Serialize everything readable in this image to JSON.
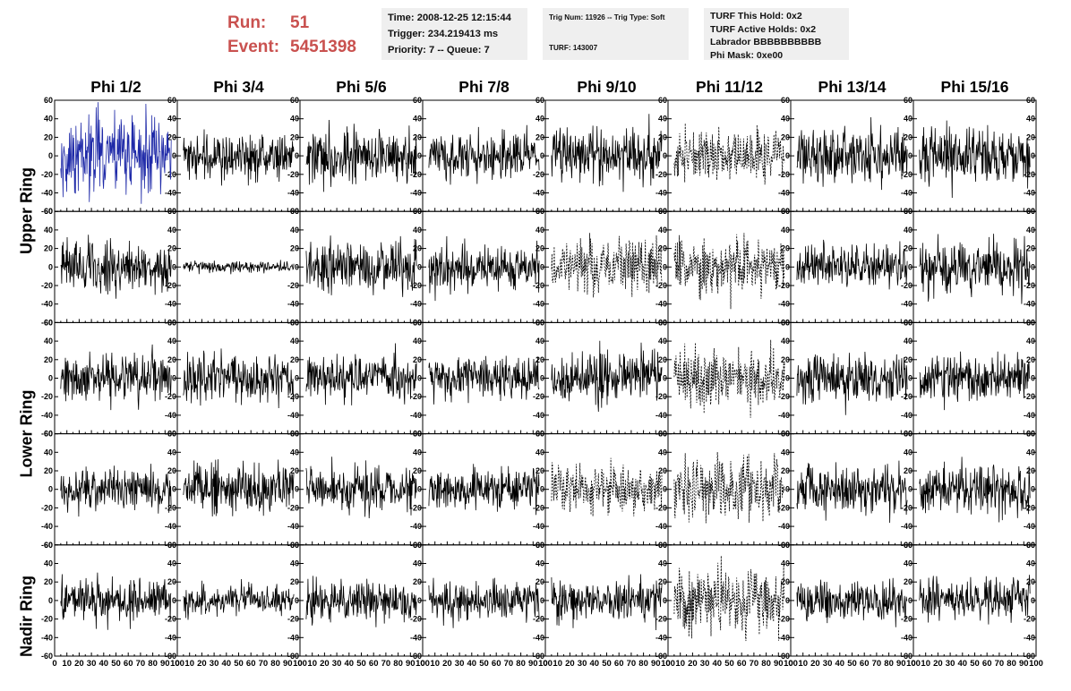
{
  "header": {
    "run_label": "Run:",
    "run_value": "51",
    "event_label": "Event:",
    "event_value": "5451398"
  },
  "time_box": {
    "time": "Time: 2008-12-25 12:15:44",
    "trigger": "Trigger: 234.219413 ms",
    "priority": "Priority: 7 -- Queue: 7"
  },
  "trig_box": {
    "trig": "Trig Num: 11926 -- Trig Type: Soft",
    "turf": "TURF: 143007"
  },
  "turf_box": {
    "hold": "TURF This Hold: 0x2",
    "active": "TURF Active Holds: 0x2",
    "labrador": "Labrador BBBBBBBBBB",
    "mask": "Phi Mask: 0xe00"
  },
  "colors": {
    "run_text": "#c9514f",
    "box_bg": "#efefef",
    "highlight_trace": "#1f2aa8",
    "trace": "#000000"
  },
  "chart_data": {
    "type": "line",
    "columns": [
      "Phi 1/2",
      "Phi 3/4",
      "Phi 5/6",
      "Phi 7/8",
      "Phi 9/10",
      "Phi 11/12",
      "Phi 13/14",
      "Phi 15/16"
    ],
    "row_labels": [
      "Upper Ring",
      "Lower Ring",
      "Nadir Ring"
    ],
    "rows": 5,
    "xlim": [
      0,
      100
    ],
    "ylim": [
      -60,
      60
    ],
    "x_ticks": [
      "0",
      "10",
      "20",
      "30",
      "40",
      "50",
      "60",
      "70",
      "80",
      "90",
      "100"
    ],
    "y_ticks": [
      "-60",
      "-40",
      "-20",
      "0",
      "20",
      "40",
      "60"
    ],
    "grid": false,
    "highlighted_panel": [
      0,
      0
    ],
    "panel_amplitudes": [
      [
        22,
        12,
        14,
        12,
        15,
        13,
        15,
        15
      ],
      [
        14,
        3,
        14,
        12,
        16,
        16,
        12,
        14
      ],
      [
        12,
        13,
        13,
        11,
        14,
        15,
        14,
        13
      ],
      [
        11,
        14,
        12,
        11,
        13,
        18,
        13,
        13
      ],
      [
        11,
        8,
        11,
        10,
        11,
        18,
        11,
        11
      ]
    ],
    "dashed_panels": [
      [
        0,
        5
      ],
      [
        1,
        4
      ],
      [
        1,
        5
      ],
      [
        2,
        5
      ],
      [
        3,
        4
      ],
      [
        3,
        5
      ],
      [
        4,
        5
      ]
    ],
    "note_values": "traces are dense noise waveforms; amplitudes estimated per panel"
  }
}
